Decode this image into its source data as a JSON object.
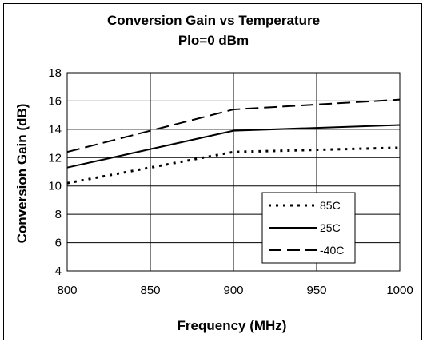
{
  "chart_data": {
    "type": "line",
    "title": "Conversion Gain vs Temperature",
    "subtitle": "Plo=0 dBm",
    "xlabel": "Frequency (MHz)",
    "ylabel": "Conversion Gain (dB)",
    "xlim": [
      800,
      1000
    ],
    "ylim": [
      4,
      18
    ],
    "x_ticks": [
      800,
      850,
      900,
      950,
      1000
    ],
    "y_ticks": [
      4,
      6,
      8,
      10,
      12,
      14,
      16,
      18
    ],
    "grid": true,
    "legend_position": "bottom-right",
    "series": [
      {
        "name": "85C",
        "style": "dotted",
        "color": "#000000",
        "x": [
          800,
          900,
          1000
        ],
        "y": [
          10.2,
          12.4,
          12.7
        ]
      },
      {
        "name": "25C",
        "style": "solid",
        "color": "#000000",
        "x": [
          800,
          900,
          1000
        ],
        "y": [
          11.3,
          13.9,
          14.3
        ]
      },
      {
        "name": "-40C",
        "style": "dashed",
        "color": "#000000",
        "x": [
          800,
          850,
          900,
          1000
        ],
        "y": [
          12.4,
          13.9,
          15.4,
          16.1
        ]
      }
    ]
  }
}
